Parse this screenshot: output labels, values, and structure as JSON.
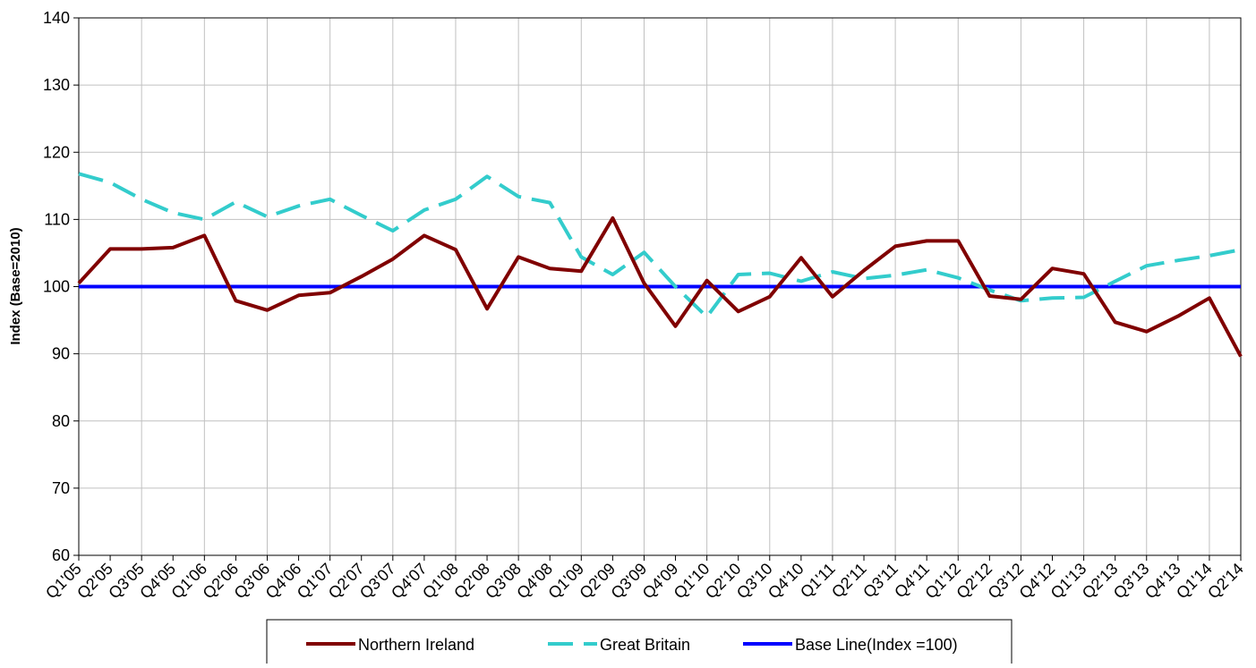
{
  "chart_data": {
    "type": "line",
    "y_label": "Index (Base=2010)",
    "categories": [
      "Q1'05",
      "Q2'05",
      "Q3'05",
      "Q4'05",
      "Q1'06",
      "Q2'06",
      "Q3'06",
      "Q4'06",
      "Q1'07",
      "Q2'07",
      "Q3'07",
      "Q4'07",
      "Q1'08",
      "Q2'08",
      "Q3'08",
      "Q4'08",
      "Q1'09",
      "Q2'09",
      "Q3'09",
      "Q4'09",
      "Q1'10",
      "Q2'10",
      "Q3'10",
      "Q4'10",
      "Q1'11",
      "Q2'11",
      "Q3'11",
      "Q4'11",
      "Q1'12",
      "Q2'12",
      "Q3'12",
      "Q4'12",
      "Q1'13",
      "Q2'13",
      "Q3'13",
      "Q4'13",
      "Q1'14",
      "Q2'14"
    ],
    "series": [
      {
        "name": "Northern Ireland",
        "color": "#800000",
        "dashed": false,
        "values": [
          100.5,
          105.6,
          105.6,
          105.8,
          107.6,
          97.9,
          96.5,
          98.7,
          99.1,
          101.5,
          104.1,
          107.6,
          105.5,
          96.7,
          104.4,
          102.7,
          102.3,
          110.2,
          100.5,
          94.1,
          100.9,
          96.3,
          98.5,
          104.3,
          98.5,
          102.4,
          106.0,
          106.8,
          106.8,
          98.6,
          98.1,
          102.7,
          101.9,
          94.7,
          93.3,
          95.6,
          98.3,
          89.6
        ]
      },
      {
        "name": "Great Britain",
        "color": "#33cccc",
        "dashed": true,
        "values": [
          116.8,
          115.5,
          113.0,
          111.0,
          110.0,
          112.6,
          110.4,
          112.0,
          113.0,
          110.6,
          108.3,
          111.4,
          113.0,
          116.4,
          113.4,
          112.5,
          104.4,
          101.8,
          105.1,
          100.0,
          95.5,
          101.8,
          102.0,
          100.8,
          102.2,
          101.2,
          101.7,
          102.5,
          101.3,
          99.5,
          97.9,
          98.3,
          98.4,
          100.8,
          103.1,
          103.9,
          104.6,
          105.5
        ]
      },
      {
        "name": "Base Line(Index =100)",
        "color": "#0000ff",
        "dashed": false,
        "values": [
          100,
          100,
          100,
          100,
          100,
          100,
          100,
          100,
          100,
          100,
          100,
          100,
          100,
          100,
          100,
          100,
          100,
          100,
          100,
          100,
          100,
          100,
          100,
          100,
          100,
          100,
          100,
          100,
          100,
          100,
          100,
          100,
          100,
          100,
          100,
          100,
          100,
          100
        ]
      }
    ],
    "ylim": [
      60,
      140
    ],
    "yticks": [
      60,
      70,
      80,
      90,
      100,
      110,
      120,
      130,
      140
    ],
    "grid": true
  }
}
